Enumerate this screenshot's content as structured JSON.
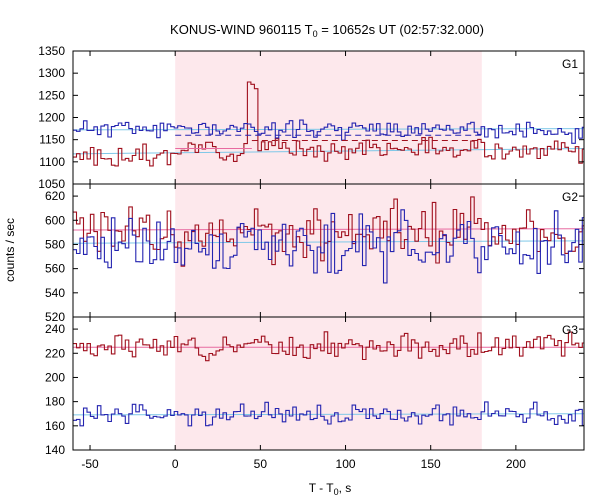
{
  "chart_data": {
    "type": "line",
    "title": "KONUS-WIND 960115 T0 = 10652s UT (02:57:32.000)",
    "title_parts": {
      "pre": "KONUS-WIND 960115 T",
      "sub": "0",
      "post": " = 10652s UT (02:57:32.000)"
    },
    "xlabel": "T - T0, s",
    "xlabel_parts": {
      "pre": "T - T",
      "sub": "0",
      "post": ", s"
    },
    "ylabel": "counts / sec",
    "xlim": [
      -60,
      240
    ],
    "xticks": [
      -50,
      0,
      50,
      100,
      150,
      200
    ],
    "highlight": {
      "from": 0,
      "to": 180,
      "color": "#fde8ec"
    },
    "colors": {
      "red": "#a0101e",
      "blue": "#2424b0",
      "background_fit": "#7fc8e8",
      "pink": "#e86aa0"
    },
    "panels": [
      {
        "label": "G1",
        "ylim": [
          1050,
          1350
        ],
        "yticks": [
          1050,
          1100,
          1150,
          1200,
          1250,
          1300,
          1350
        ],
        "series": [
          {
            "color": "red",
            "base": 1135,
            "amp": 14,
            "seed": 3,
            "seg_base": [
              [
                -60,
                1110
              ],
              [
                0,
                1130
              ],
              [
                180,
                1125
              ]
            ],
            "spike": {
              "from": 42,
              "to": 48,
              "values": [
                1280,
                1275,
                1265
              ]
            }
          },
          {
            "color": "blue",
            "base": 1175,
            "amp": 12,
            "seed": 11,
            "seg_base": [
              [
                -60,
                1175
              ],
              [
                180,
                1165
              ]
            ]
          }
        ],
        "fit_lines": [
          {
            "color": "background_fit",
            "from": -60,
            "to": 240,
            "y0": 1172,
            "y1": 1175
          },
          {
            "color": "background_fit",
            "from": -60,
            "to": 240,
            "y0": 1118,
            "y1": 1130
          }
        ],
        "dashed_lines": [
          {
            "color": "red",
            "from": 45,
            "to": 180,
            "y": 1148
          },
          {
            "color": "blue",
            "from": 0,
            "to": 180,
            "y": 1160
          }
        ],
        "pink_line": {
          "from": 0,
          "to": 45,
          "y": 1130
        }
      },
      {
        "label": "G2",
        "ylim": [
          520,
          630
        ],
        "yticks": [
          520,
          540,
          560,
          580,
          600,
          620
        ],
        "series": [
          {
            "color": "red",
            "base": 592,
            "amp": 14,
            "seed": 7
          },
          {
            "color": "blue",
            "base": 580,
            "amp": 15,
            "seed": 19
          }
        ],
        "fit_lines": [
          {
            "color": "background_fit",
            "from": -60,
            "to": 240,
            "y0": 581,
            "y1": 583
          },
          {
            "color": "pink",
            "from": -60,
            "to": 240,
            "y0": 592,
            "y1": 593
          }
        ]
      },
      {
        "label": "G3",
        "ylim": [
          140,
          250
        ],
        "yticks": [
          140,
          160,
          180,
          200,
          220,
          240
        ],
        "series": [
          {
            "color": "red",
            "base": 226,
            "amp": 6,
            "seed": 5
          },
          {
            "color": "blue",
            "base": 169,
            "amp": 5,
            "seed": 23
          }
        ],
        "fit_lines": [
          {
            "color": "background_fit",
            "from": -60,
            "to": 240,
            "y0": 169,
            "y1": 170
          },
          {
            "color": "pink",
            "from": -60,
            "to": 240,
            "y0": 225,
            "y1": 225
          }
        ]
      }
    ]
  }
}
